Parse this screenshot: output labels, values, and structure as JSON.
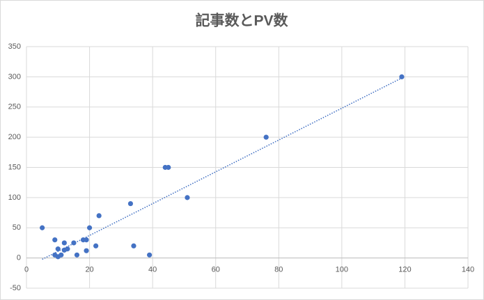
{
  "chart_data": {
    "type": "scatter",
    "title": "記事数とPV数",
    "x": [
      5,
      9,
      9,
      10,
      10,
      11,
      12,
      12,
      13,
      15,
      16,
      18,
      19,
      19,
      20,
      22,
      23,
      33,
      34,
      39,
      44,
      45,
      51,
      76,
      119
    ],
    "y": [
      50,
      30,
      5,
      15,
      2,
      5,
      25,
      13,
      15,
      25,
      5,
      30,
      30,
      12,
      50,
      20,
      70,
      90,
      20,
      5,
      150,
      150,
      100,
      200,
      300
    ],
    "color": "#4472c4",
    "trendline": "linear",
    "xlim": [
      0,
      140
    ],
    "xticks": [
      0,
      20,
      40,
      60,
      80,
      100,
      120,
      140
    ],
    "ylim": [
      -50,
      350
    ],
    "yticks": [
      -50,
      0,
      50,
      100,
      150,
      200,
      250,
      300,
      350
    ],
    "grid": true
  }
}
